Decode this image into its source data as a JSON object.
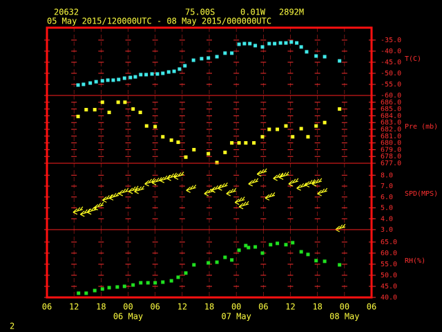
{
  "header": {
    "station": "20632",
    "lat": "75.00S",
    "lon": "0.01W",
    "elev": "2892M",
    "period": "05 May 2015/120000UTC - 08 May 2015/000000UTC",
    "page": "2"
  },
  "x_axis": {
    "xlim": [
      0,
      72
    ],
    "xticks": [
      {
        "value": 0,
        "label": "06"
      },
      {
        "value": 6,
        "label": "12"
      },
      {
        "value": 12,
        "label": "18"
      },
      {
        "value": 18,
        "label": "00"
      },
      {
        "value": 24,
        "label": "06"
      },
      {
        "value": 30,
        "label": "12"
      },
      {
        "value": 36,
        "label": "18"
      },
      {
        "value": 42,
        "label": "00"
      },
      {
        "value": 48,
        "label": "06"
      },
      {
        "value": 54,
        "label": "12"
      },
      {
        "value": 60,
        "label": "18"
      },
      {
        "value": 66,
        "label": "00"
      },
      {
        "value": 72,
        "label": "06"
      }
    ],
    "day_labels": [
      {
        "value": 18,
        "label": "06 May"
      },
      {
        "value": 42,
        "label": "07 May"
      },
      {
        "value": 66,
        "label": "08 May"
      }
    ]
  },
  "chart_data": [
    {
      "type": "scatter",
      "label": "T(C)",
      "color": "#40e8e8",
      "ylim": [
        -60,
        -29.4
      ],
      "yticks": [
        {
          "value": -35,
          "label": "-35.0"
        },
        {
          "value": -40,
          "label": "-40.0"
        },
        {
          "value": -45,
          "label": "-45.0"
        },
        {
          "value": -50,
          "label": "-50.0"
        },
        {
          "value": -55,
          "label": "-55.0"
        },
        {
          "value": -60,
          "label": "-60.0"
        }
      ],
      "x": [
        6.9,
        8.1,
        9.6,
        10.9,
        12.3,
        13.5,
        14.7,
        15.9,
        17.2,
        18.5,
        19.6,
        20.8,
        22,
        23.3,
        24.5,
        25.7,
        27,
        28.2,
        29.4,
        30.6,
        32.5,
        34.3,
        35.8,
        37.7,
        39.5,
        41,
        42.6,
        43.8,
        45,
        46.2,
        47.8,
        49.3,
        50.5,
        51.8,
        53,
        54.2,
        55.4,
        56.4,
        57.6,
        59.7,
        61.6,
        64.9
      ],
      "values": [
        -55.3,
        -55,
        -54.4,
        -53.8,
        -53.4,
        -53.1,
        -53.1,
        -52.8,
        -52.2,
        -51.9,
        -51.6,
        -50.6,
        -50.6,
        -50.3,
        -50.3,
        -50,
        -49.4,
        -49.1,
        -48.1,
        -46.6,
        -44.1,
        -43.4,
        -43.1,
        -42.5,
        -40.9,
        -40.9,
        -36.9,
        -36.6,
        -36.6,
        -37.5,
        -38.1,
        -36.6,
        -36.6,
        -36.3,
        -36.3,
        -35.9,
        -36.3,
        -38.1,
        -40.3,
        -42.2,
        -42.5,
        -44.4
      ]
    },
    {
      "type": "scatter",
      "label": "Pre (mb)",
      "color": "#ffff20",
      "ylim": [
        677,
        687
      ],
      "yticks": [
        {
          "value": 686,
          "label": "686.0"
        },
        {
          "value": 685,
          "label": "685.0"
        },
        {
          "value": 684,
          "label": "684.0"
        },
        {
          "value": 683,
          "label": "683.0"
        },
        {
          "value": 682,
          "label": "682.0"
        },
        {
          "value": 681,
          "label": "681.0"
        },
        {
          "value": 680,
          "label": "680.0"
        },
        {
          "value": 679,
          "label": "679.0"
        },
        {
          "value": 678,
          "label": "678.0"
        },
        {
          "value": 677,
          "label": "677.0"
        }
      ],
      "x": [
        6.9,
        8.7,
        10.6,
        12.3,
        13.8,
        15.8,
        17.3,
        19.1,
        20.7,
        22.1,
        24,
        25.7,
        27.6,
        29.1,
        30.8,
        32.6,
        35.8,
        37.7,
        39.5,
        41,
        42.6,
        44.1,
        45.9,
        47.8,
        49.3,
        51.1,
        53,
        54.5,
        56.4,
        57.9,
        59.7,
        61.6,
        64.9
      ],
      "values": [
        683.9,
        684.9,
        684.9,
        686,
        684.5,
        686,
        686,
        685,
        684.5,
        682.5,
        682.4,
        680.9,
        680.4,
        680.1,
        677.9,
        679,
        678.4,
        677.1,
        678.6,
        680,
        680,
        680,
        680,
        680.9,
        682,
        682,
        682.5,
        680.9,
        682.1,
        680.9,
        682.5,
        683,
        685
      ]
    },
    {
      "type": "wind",
      "label": "SPD(MPS)",
      "color": "#ffff20",
      "ylim": [
        3,
        9.1
      ],
      "yticks": [
        {
          "value": 8,
          "label": "8.0"
        },
        {
          "value": 7,
          "label": "7.0"
        },
        {
          "value": 6,
          "label": "6.0"
        },
        {
          "value": 5,
          "label": "5.0"
        },
        {
          "value": 4,
          "label": "4.0"
        },
        {
          "value": 3,
          "label": "3.0"
        }
      ],
      "x": [
        5.8,
        7.4,
        8.9,
        10.4,
        12.3,
        13.8,
        15.9,
        18.1,
        19.4,
        21.7,
        23.3,
        25.1,
        26.6,
        28.2,
        30.9,
        34.9,
        36.4,
        37.9,
        39.8,
        41.7,
        42.6,
        44.7,
        46.6,
        48.4,
        50.2,
        51.5,
        53.6,
        55.4,
        57.3,
        58.8,
        60,
        64
      ],
      "values": [
        4.6,
        4.4,
        4.6,
        5,
        5.7,
        5.9,
        6.3,
        6.5,
        6.5,
        7.2,
        7.3,
        7.5,
        7.7,
        7.8,
        6.6,
        6.3,
        6.6,
        6.8,
        6.3,
        5.5,
        5.1,
        7.2,
        8.1,
        5.9,
        7.7,
        7.8,
        7.2,
        6.8,
        7.1,
        7.2,
        6.3,
        3
      ]
    },
    {
      "type": "scatter",
      "label": "RH(%)",
      "color": "#20e020",
      "ylim": [
        40,
        70.6
      ],
      "yticks": [
        {
          "value": 65,
          "label": "65.0"
        },
        {
          "value": 60,
          "label": "60.0"
        },
        {
          "value": 55,
          "label": "55.0"
        },
        {
          "value": 50,
          "label": "50.0"
        },
        {
          "value": 45,
          "label": "45.0"
        },
        {
          "value": 40,
          "label": "40.0"
        }
      ],
      "x": [
        7,
        8.7,
        10.6,
        12.3,
        13.8,
        15.6,
        17.2,
        19.1,
        20.8,
        22.4,
        24,
        25.7,
        27.6,
        29.1,
        30.8,
        32.6,
        35.8,
        37.7,
        39.5,
        41,
        42.6,
        44.1,
        44.7,
        46.2,
        47.8,
        49.6,
        51.1,
        53,
        54.5,
        56.4,
        57.9,
        59.7,
        61.6,
        64.9
      ],
      "values": [
        41.9,
        41.9,
        43.1,
        43.8,
        44.4,
        44.7,
        45,
        45.6,
        46.6,
        46.6,
        46.6,
        46.9,
        47.5,
        49.1,
        51,
        54.7,
        55.6,
        55.9,
        58.1,
        56.9,
        61.3,
        63.4,
        62.5,
        62.8,
        60,
        63.8,
        64.4,
        63.8,
        64.7,
        60.6,
        59.4,
        56.6,
        56.3,
        54.7
      ]
    }
  ]
}
